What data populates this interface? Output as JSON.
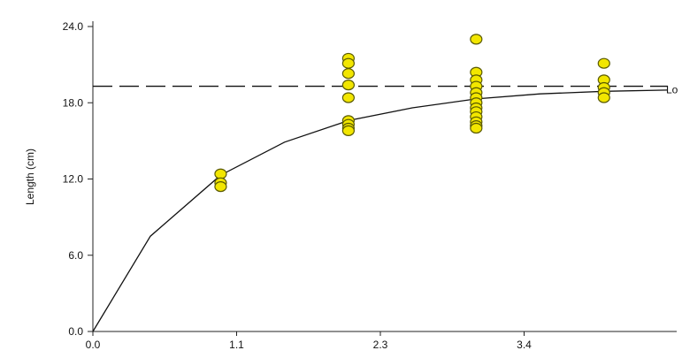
{
  "chart_data": {
    "type": "scatter",
    "title": "",
    "xlabel": "",
    "ylabel": "Length (cm)",
    "xlim": [
      0.0,
      4.5
    ],
    "ylim": [
      0.0,
      24.0
    ],
    "x_ticks": [
      {
        "value": 0.0,
        "label": "0.0"
      },
      {
        "value": 1.125,
        "label": "1.1"
      },
      {
        "value": 2.25,
        "label": "2.3"
      },
      {
        "value": 3.375,
        "label": "3.4"
      }
    ],
    "y_ticks": [
      {
        "value": 0.0,
        "label": "0.0"
      },
      {
        "value": 6.0,
        "label": "6.0"
      },
      {
        "value": 12.0,
        "label": "12.0"
      },
      {
        "value": 18.0,
        "label": "18.0"
      },
      {
        "value": 24.0,
        "label": "24.0"
      }
    ],
    "grid": false,
    "legend": "none",
    "colors": {
      "point_fill": "#f2e600",
      "point_stroke": "#5a5a00",
      "line": "#111111"
    },
    "points": [
      {
        "x": 1.0,
        "y": 12.4
      },
      {
        "x": 1.0,
        "y": 11.7
      },
      {
        "x": 1.0,
        "y": 11.4
      },
      {
        "x": 2.0,
        "y": 21.5
      },
      {
        "x": 2.0,
        "y": 21.1
      },
      {
        "x": 2.0,
        "y": 20.3
      },
      {
        "x": 2.0,
        "y": 19.4
      },
      {
        "x": 2.0,
        "y": 18.4
      },
      {
        "x": 2.0,
        "y": 16.6
      },
      {
        "x": 2.0,
        "y": 16.3
      },
      {
        "x": 2.0,
        "y": 16.0
      },
      {
        "x": 2.0,
        "y": 15.8
      },
      {
        "x": 3.0,
        "y": 23.0
      },
      {
        "x": 3.0,
        "y": 20.4
      },
      {
        "x": 3.0,
        "y": 19.8
      },
      {
        "x": 3.0,
        "y": 19.3
      },
      {
        "x": 3.0,
        "y": 18.8
      },
      {
        "x": 3.0,
        "y": 18.4
      },
      {
        "x": 3.0,
        "y": 18.0
      },
      {
        "x": 3.0,
        "y": 17.6
      },
      {
        "x": 3.0,
        "y": 17.3
      },
      {
        "x": 3.0,
        "y": 16.9
      },
      {
        "x": 3.0,
        "y": 16.5
      },
      {
        "x": 3.0,
        "y": 16.2
      },
      {
        "x": 3.0,
        "y": 16.0
      },
      {
        "x": 4.0,
        "y": 21.1
      },
      {
        "x": 4.0,
        "y": 19.8
      },
      {
        "x": 4.0,
        "y": 19.2
      },
      {
        "x": 4.0,
        "y": 18.8
      },
      {
        "x": 4.0,
        "y": 18.4
      }
    ],
    "growth_curve": {
      "x": [
        0.0,
        0.45,
        1.0,
        1.5,
        2.0,
        2.5,
        3.0,
        3.5,
        4.0,
        4.5
      ],
      "y": [
        0.0,
        7.5,
        12.3,
        14.9,
        16.6,
        17.6,
        18.3,
        18.7,
        18.9,
        19.0
      ]
    },
    "asymptote": {
      "y": 19.3,
      "label": "Lo"
    }
  }
}
